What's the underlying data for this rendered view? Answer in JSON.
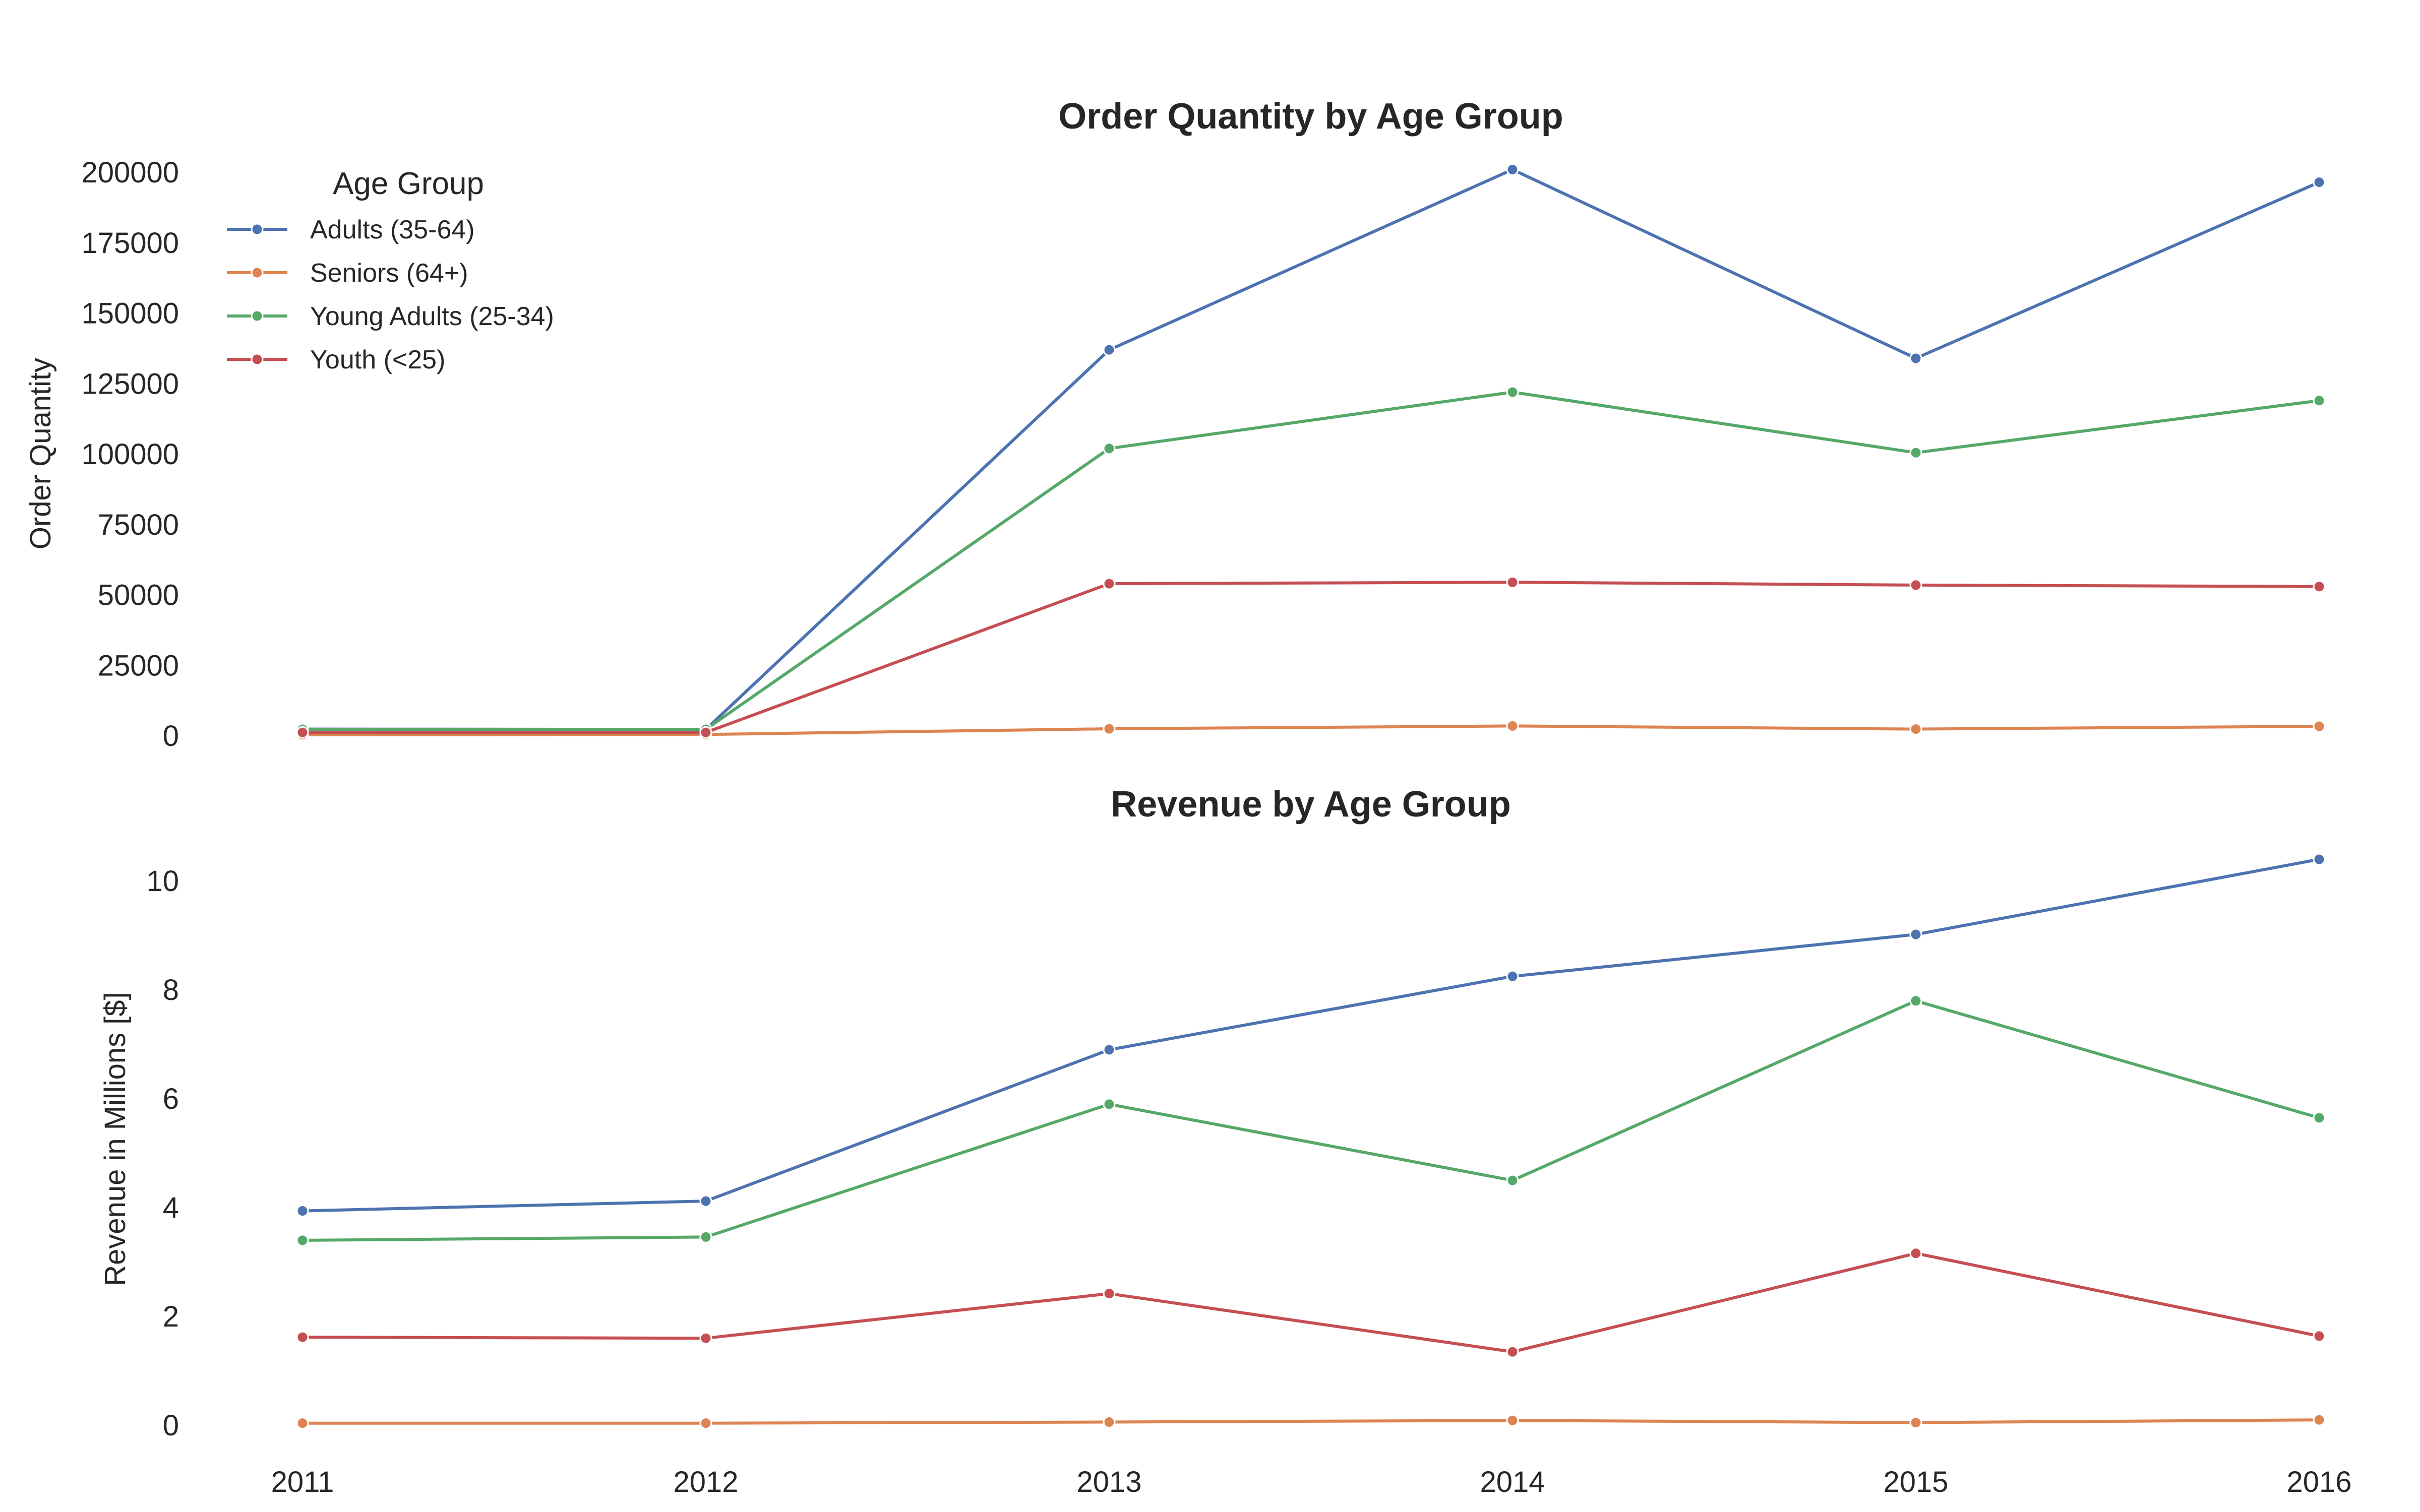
{
  "chart_data": [
    {
      "type": "line",
      "title": "Order Quantity by Age Group",
      "xlabel": "",
      "ylabel": "Order Quantity",
      "x": [
        "2011",
        "2012",
        "2013",
        "2014",
        "2015",
        "2016"
      ],
      "y_ticks": [
        "0",
        "25000",
        "50000",
        "75000",
        "100000",
        "125000",
        "150000",
        "175000",
        "200000"
      ],
      "ylim": [
        0,
        200000
      ],
      "x_ticks_shown": false,
      "grid": false,
      "legend": {
        "title": "Age Group",
        "position": "top-left"
      },
      "series": [
        {
          "name": "Adults (35-64)",
          "color": "#4c72b0",
          "values": [
            2400,
            2300,
            137000,
            201000,
            134000,
            196500
          ]
        },
        {
          "name": "Seniors (64+)",
          "color": "#dd8452",
          "values": [
            400,
            500,
            2500,
            3500,
            2400,
            3400
          ]
        },
        {
          "name": "Young Adults (25-34)",
          "color": "#55a868",
          "values": [
            2300,
            2300,
            102000,
            122000,
            100500,
            119000
          ]
        },
        {
          "name": "Youth (<25)",
          "color": "#c44e52",
          "values": [
            1200,
            1200,
            54000,
            54500,
            53500,
            53000
          ]
        }
      ]
    },
    {
      "type": "line",
      "title": "Revenue by Age Group",
      "xlabel": "",
      "ylabel": "Revenue in Millions [$]",
      "x": [
        "2011",
        "2012",
        "2013",
        "2014",
        "2015",
        "2016"
      ],
      "x_ticks": [
        "2011",
        "2012",
        "2013",
        "2014",
        "2015",
        "2016"
      ],
      "y_ticks": [
        "0",
        "2",
        "4",
        "6",
        "8",
        "10"
      ],
      "ylim": [
        0,
        10.4
      ],
      "grid": false,
      "series": [
        {
          "name": "Adults (35-64)",
          "color": "#4c72b0",
          "values": [
            3.94,
            4.12,
            6.9,
            8.25,
            9.02,
            10.4
          ]
        },
        {
          "name": "Seniors (64+)",
          "color": "#dd8452",
          "values": [
            0.04,
            0.04,
            0.06,
            0.09,
            0.05,
            0.1
          ]
        },
        {
          "name": "Young Adults (25-34)",
          "color": "#55a868",
          "values": [
            3.4,
            3.46,
            5.9,
            4.5,
            7.8,
            5.65
          ]
        },
        {
          "name": "Youth (<25)",
          "color": "#c44e52",
          "values": [
            1.62,
            1.6,
            2.42,
            1.35,
            3.16,
            1.64
          ]
        }
      ]
    }
  ]
}
